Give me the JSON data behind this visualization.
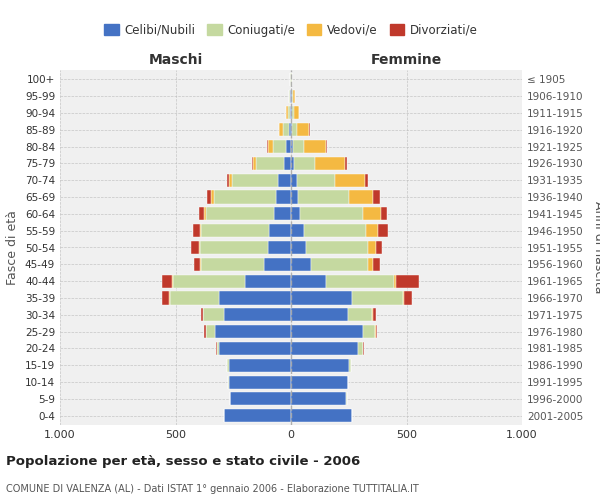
{
  "age_groups": [
    "0-4",
    "5-9",
    "10-14",
    "15-19",
    "20-24",
    "25-29",
    "30-34",
    "35-39",
    "40-44",
    "45-49",
    "50-54",
    "55-59",
    "60-64",
    "65-69",
    "70-74",
    "75-79",
    "80-84",
    "85-89",
    "90-94",
    "95-99",
    "100+"
  ],
  "birth_years": [
    "2001-2005",
    "1996-2000",
    "1991-1995",
    "1986-1990",
    "1981-1985",
    "1976-1980",
    "1971-1975",
    "1966-1970",
    "1961-1965",
    "1956-1960",
    "1951-1955",
    "1946-1950",
    "1941-1945",
    "1936-1940",
    "1931-1935",
    "1926-1930",
    "1921-1925",
    "1916-1920",
    "1911-1915",
    "1906-1910",
    "≤ 1905"
  ],
  "maschi": {
    "celibi": [
      290,
      265,
      270,
      270,
      310,
      330,
      290,
      310,
      200,
      115,
      100,
      95,
      75,
      65,
      55,
      30,
      20,
      10,
      5,
      4,
      2
    ],
    "coniugati": [
      0,
      0,
      2,
      5,
      10,
      40,
      90,
      215,
      310,
      275,
      295,
      295,
      295,
      270,
      200,
      120,
      60,
      25,
      10,
      3,
      1
    ],
    "vedovi": [
      0,
      0,
      0,
      0,
      0,
      0,
      1,
      2,
      3,
      4,
      5,
      5,
      8,
      10,
      15,
      15,
      20,
      18,
      8,
      3,
      1
    ],
    "divorziati": [
      0,
      0,
      0,
      0,
      3,
      5,
      10,
      30,
      45,
      25,
      35,
      30,
      20,
      20,
      8,
      5,
      2,
      0,
      0,
      0,
      0
    ]
  },
  "femmine": {
    "nubili": [
      265,
      240,
      245,
      250,
      290,
      310,
      245,
      265,
      150,
      85,
      65,
      55,
      40,
      30,
      25,
      15,
      10,
      5,
      5,
      5,
      2
    ],
    "coniugate": [
      0,
      1,
      3,
      8,
      20,
      55,
      105,
      220,
      295,
      250,
      270,
      270,
      270,
      220,
      165,
      90,
      45,
      20,
      8,
      3,
      1
    ],
    "vedove": [
      0,
      0,
      0,
      0,
      1,
      2,
      3,
      5,
      10,
      20,
      35,
      50,
      80,
      105,
      130,
      130,
      95,
      55,
      20,
      10,
      2
    ],
    "divorziate": [
      0,
      0,
      0,
      0,
      3,
      5,
      15,
      35,
      100,
      30,
      25,
      45,
      25,
      30,
      15,
      8,
      5,
      2,
      0,
      0,
      0
    ]
  },
  "colors": {
    "celibi": "#4472C4",
    "coniugati": "#C5D9A0",
    "vedovi": "#F4B942",
    "divorziati": "#C0392B"
  },
  "legend_labels": [
    "Celibi/Nubili",
    "Coniugati/e",
    "Vedovi/e",
    "Divorziati/e"
  ],
  "title": "Popolazione per età, sesso e stato civile - 2006",
  "subtitle": "COMUNE DI VALENZA (AL) - Dati ISTAT 1° gennaio 2006 - Elaborazione TUTTITALIA.IT",
  "xlabel_left": "Maschi",
  "xlabel_right": "Femmine",
  "ylabel_left": "Fasce di età",
  "ylabel_right": "Anni di nascita",
  "xlim": 1000,
  "bg_color": "#ffffff",
  "plot_bg": "#f0f0f0"
}
